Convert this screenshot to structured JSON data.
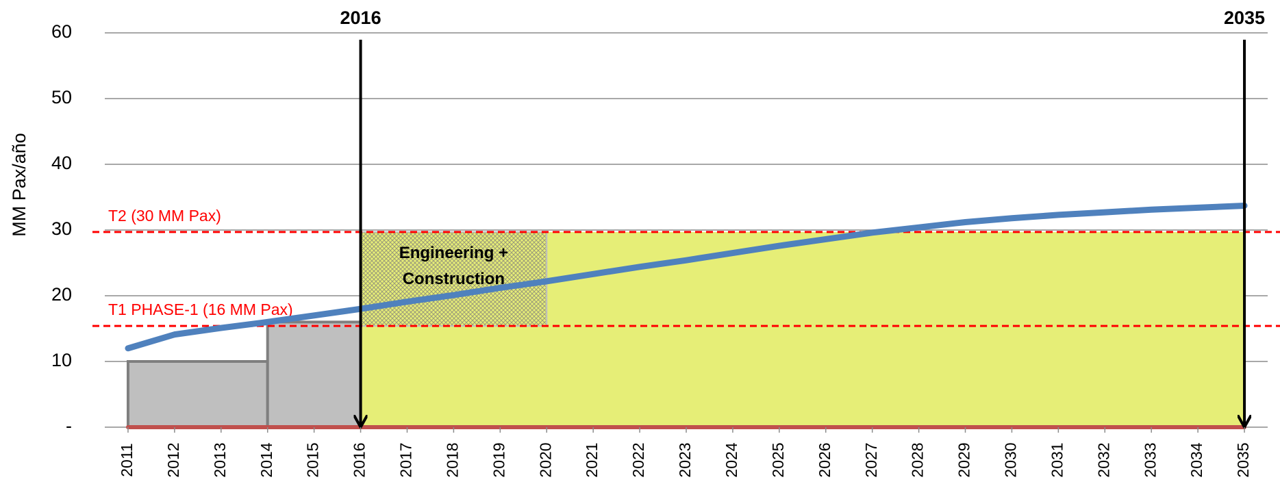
{
  "chart_data": {
    "type": "line",
    "y_label": "MM Pax/año",
    "x": [
      2011,
      2012,
      2013,
      2014,
      2015,
      2016,
      2017,
      2018,
      2019,
      2020,
      2021,
      2022,
      2023,
      2024,
      2025,
      2026,
      2027,
      2028,
      2029,
      2030,
      2031,
      2032,
      2033,
      2034,
      2035
    ],
    "series": [
      {
        "color": "#4f81bd",
        "values": [
          12.0,
          14.1,
          15.1,
          16.0,
          17.0,
          18.0,
          19.1,
          20.1,
          21.2,
          22.2,
          23.3,
          24.4,
          25.4,
          26.5,
          27.6,
          28.6,
          29.6,
          30.4,
          31.2,
          31.8,
          32.3,
          32.7,
          33.1,
          33.4,
          33.7
        ]
      }
    ],
    "xlim": [
      2010.5,
      2035.5
    ],
    "xticks": [
      2011,
      2012,
      2013,
      2014,
      2015,
      2016,
      2017,
      2018,
      2019,
      2020,
      2021,
      2022,
      2023,
      2024,
      2025,
      2026,
      2027,
      2028,
      2029,
      2030,
      2031,
      2032,
      2033,
      2034,
      2035
    ],
    "ylim": [
      0,
      60
    ],
    "yticks": [
      {
        "value": 0,
        "label": "-"
      },
      10,
      20,
      30,
      40,
      50,
      60
    ],
    "grid": true,
    "steps": [
      {
        "x0": 2011,
        "x1": 2014,
        "value": 10,
        "color": "#bfbfbf"
      },
      {
        "x0": 2014,
        "x1": 2016,
        "value": 16,
        "color": "#bfbfbf"
      }
    ],
    "capacity_region": {
      "x0": 2016,
      "x1": 2035,
      "value": 29.7,
      "color": "#e6ee77"
    },
    "phase_region": {
      "x0": 2016,
      "x1": 2020,
      "y0": 15.4,
      "y1": 29.7,
      "label": "Engineering + Construction"
    },
    "reference_lines": [
      {
        "label": "T2 (30 MM Pax)",
        "value": 29.7,
        "color": "#ff0000"
      },
      {
        "label": "T1 PHASE-1 (16 MM Pax)",
        "value": 15.4,
        "color": "#ff0000"
      }
    ],
    "baseline": {
      "x0": 2011,
      "x1": 2035,
      "value": 0,
      "color": "#c0504d"
    },
    "markers": [
      {
        "label": "2016",
        "x": 2016
      },
      {
        "label": "2035",
        "x": 2035
      }
    ]
  }
}
